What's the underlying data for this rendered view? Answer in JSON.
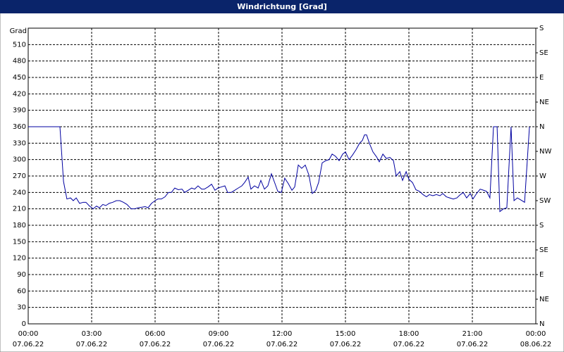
{
  "chart_data": {
    "type": "line",
    "title": "Windrichtung [Grad]",
    "y_label": "Grad",
    "xlim": [
      0,
      24
    ],
    "xticks": [
      {
        "value": 0,
        "label": "00:00"
      },
      {
        "value": 3,
        "label": "03:00"
      },
      {
        "value": 6,
        "label": "06:00"
      },
      {
        "value": 9,
        "label": "09:00"
      },
      {
        "value": 12,
        "label": "12:00"
      },
      {
        "value": 15,
        "label": "15:00"
      },
      {
        "value": 18,
        "label": "18:00"
      },
      {
        "value": 21,
        "label": "21:00"
      },
      {
        "value": 24,
        "label": "00:00"
      }
    ],
    "xtick_dates": [
      "07.06.22",
      "07.06.22",
      "07.06.22",
      "07.06.22",
      "07.06.22",
      "07.06.22",
      "07.06.22",
      "07.06.22",
      "08.06.22"
    ],
    "ylim": [
      0,
      540
    ],
    "yticks": [
      0,
      30,
      60,
      90,
      120,
      150,
      180,
      210,
      240,
      270,
      300,
      330,
      360,
      390,
      420,
      450,
      480,
      510
    ],
    "y2lim": [
      0,
      540
    ],
    "y2ticks": [
      {
        "value": 0,
        "label": "N"
      },
      {
        "value": 45,
        "label": "NE"
      },
      {
        "value": 90,
        "label": "E"
      },
      {
        "value": 135,
        "label": "SE"
      },
      {
        "value": 180,
        "label": "S"
      },
      {
        "value": 225,
        "label": "SW"
      },
      {
        "value": 270,
        "label": "W"
      },
      {
        "value": 315,
        "label": "NW"
      },
      {
        "value": 360,
        "label": "N"
      },
      {
        "value": 405,
        "label": "NE"
      },
      {
        "value": 450,
        "label": "E"
      },
      {
        "value": 495,
        "label": "SE"
      },
      {
        "value": 540,
        "label": "S"
      }
    ],
    "grid": true,
    "x": [
      0,
      1.5,
      1.67,
      1.83,
      2,
      2.13,
      2.27,
      2.43,
      2.6,
      2.73,
      2.9,
      3.07,
      3.23,
      3.37,
      3.53,
      3.67,
      3.83,
      4,
      4.17,
      4.33,
      4.5,
      4.67,
      4.87,
      5.03,
      5.2,
      5.37,
      5.53,
      5.67,
      5.83,
      6,
      6.13,
      6.3,
      6.47,
      6.63,
      6.77,
      6.93,
      7.1,
      7.27,
      7.4,
      7.57,
      7.73,
      7.87,
      8.03,
      8.2,
      8.33,
      8.5,
      8.67,
      8.83,
      8.97,
      9.13,
      9.3,
      9.43,
      9.6,
      9.77,
      9.93,
      10.1,
      10.23,
      10.4,
      10.53,
      10.7,
      10.87,
      11,
      11.17,
      11.33,
      11.5,
      11.67,
      11.8,
      11.97,
      12.13,
      12.3,
      12.47,
      12.6,
      12.77,
      12.93,
      13.1,
      13.27,
      13.43,
      13.6,
      13.73,
      13.9,
      14.07,
      14.23,
      14.37,
      14.53,
      14.7,
      14.87,
      15,
      15.17,
      15.33,
      15.5,
      15.67,
      15.8,
      15.9,
      16,
      16.13,
      16.3,
      16.47,
      16.6,
      16.77,
      16.93,
      17.1,
      17.27,
      17.4,
      17.57,
      17.7,
      17.87,
      18,
      18.17,
      18.33,
      18.5,
      18.67,
      18.83,
      18.97,
      19.13,
      19.3,
      19.47,
      19.6,
      19.77,
      19.93,
      20.1,
      20.27,
      20.4,
      20.57,
      20.73,
      20.9,
      21.03,
      21.2,
      21.37,
      21.53,
      21.67,
      21.83,
      22,
      22.17,
      22.3,
      22.47,
      22.63,
      22.83,
      22.97,
      23.13,
      23.3,
      23.47,
      23.6,
      23.7
    ],
    "series": [
      {
        "name": "Windrichtung",
        "color": "#0000a0",
        "values": [
          360,
          360,
          260,
          228,
          230,
          225,
          230,
          220,
          222,
          222,
          215,
          210,
          215,
          212,
          218,
          216,
          220,
          222,
          225,
          225,
          222,
          218,
          210,
          210,
          212,
          213,
          214,
          212,
          220,
          225,
          228,
          228,
          232,
          240,
          240,
          248,
          245,
          246,
          240,
          244,
          248,
          246,
          252,
          246,
          246,
          250,
          255,
          244,
          248,
          250,
          252,
          240,
          240,
          244,
          248,
          252,
          258,
          268,
          246,
          252,
          248,
          262,
          246,
          252,
          274,
          256,
          242,
          240,
          266,
          256,
          244,
          250,
          290,
          284,
          290,
          272,
          238,
          244,
          258,
          294,
          298,
          300,
          310,
          306,
          298,
          310,
          314,
          300,
          308,
          318,
          330,
          335,
          345,
          345,
          330,
          314,
          305,
          296,
          310,
          302,
          304,
          298,
          270,
          278,
          262,
          278,
          264,
          258,
          245,
          242,
          236,
          232,
          236,
          234,
          236,
          234,
          238,
          232,
          230,
          228,
          230,
          235,
          240,
          230,
          238,
          228,
          238,
          246,
          244,
          242,
          230,
          360,
          360,
          205,
          210,
          212,
          360,
          225,
          230,
          226,
          222,
          300,
          360
        ]
      }
    ]
  }
}
